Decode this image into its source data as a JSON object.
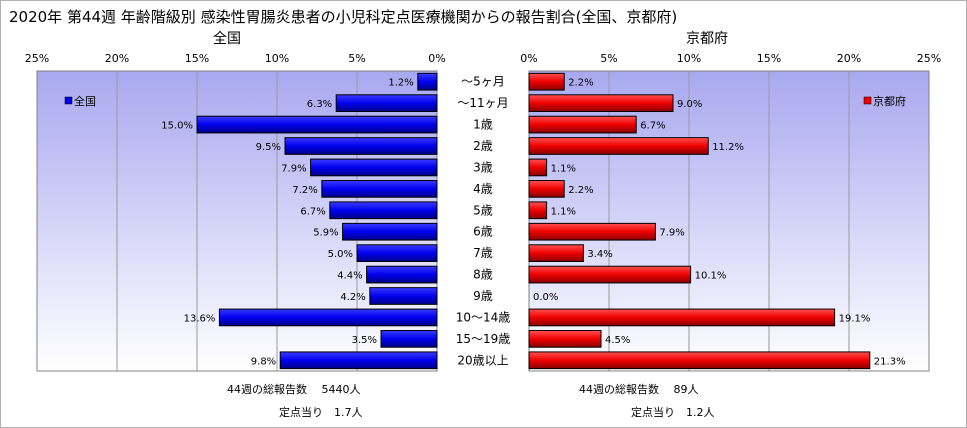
{
  "title": "2020年 第44週 年齢階級別 感染性胃腸炎患者の小児科定点医療機関からの報告割合(全国、京都府)",
  "colors": {
    "nation_bar": "#0000ee",
    "kyoto_bar": "#ee0000",
    "plot_bg_top": "#a8a8f0",
    "plot_bg_bottom": "#ffffff",
    "grid": "#9a9a9a"
  },
  "chart_data": [
    {
      "type": "bar",
      "orientation": "horizontal",
      "direction": "right-to-left",
      "title": "全国",
      "categories": [
        "～5ヶ月",
        "～11ヶ月",
        "1歳",
        "2歳",
        "3歳",
        "4歳",
        "5歳",
        "6歳",
        "7歳",
        "8歳",
        "9歳",
        "10～14歳",
        "15～19歳",
        "20歳以上"
      ],
      "series": [
        {
          "name": "全国",
          "values": [
            1.2,
            6.3,
            15.0,
            9.5,
            7.9,
            7.2,
            6.7,
            5.9,
            5.0,
            4.4,
            4.2,
            13.6,
            3.5,
            9.8
          ]
        }
      ],
      "data_labels": [
        "1.2%",
        "6.3%",
        "15.0%",
        "9.5%",
        "7.9%",
        "7.2%",
        "6.7%",
        "5.9%",
        "5.0%",
        "4.4%",
        "4.2%",
        "13.6%",
        "3.5%",
        "9.8%"
      ],
      "xlim": [
        0,
        25
      ],
      "xticks": [
        "25%",
        "20%",
        "15%",
        "10%",
        "5%",
        "0%"
      ],
      "grid": true,
      "legend": "top-left"
    },
    {
      "type": "bar",
      "orientation": "horizontal",
      "direction": "left-to-right",
      "title": "京都府",
      "categories": [
        "～5ヶ月",
        "～11ヶ月",
        "1歳",
        "2歳",
        "3歳",
        "4歳",
        "5歳",
        "6歳",
        "7歳",
        "8歳",
        "9歳",
        "10～14歳",
        "15～19歳",
        "20歳以上"
      ],
      "series": [
        {
          "name": "京都府",
          "values": [
            2.2,
            9.0,
            6.7,
            11.2,
            1.1,
            2.2,
            1.1,
            7.9,
            3.4,
            10.1,
            0.0,
            19.1,
            4.5,
            21.3
          ]
        }
      ],
      "data_labels": [
        "2.2%",
        "9.0%",
        "6.7%",
        "11.2%",
        "1.1%",
        "2.2%",
        "1.1%",
        "7.9%",
        "3.4%",
        "10.1%",
        "0.0%",
        "19.1%",
        "4.5%",
        "21.3%"
      ],
      "xlim": [
        0,
        25
      ],
      "xticks": [
        "0%",
        "5%",
        "10%",
        "15%",
        "20%",
        "25%"
      ],
      "grid": true,
      "legend": "top-right"
    }
  ],
  "footer": {
    "nation_total": "44週の総報告数　 5440人",
    "nation_per_site": "定点当り　1.7人",
    "kyoto_total": "44週の総報告数　 89人",
    "kyoto_per_site": "定点当り　1.2人"
  }
}
